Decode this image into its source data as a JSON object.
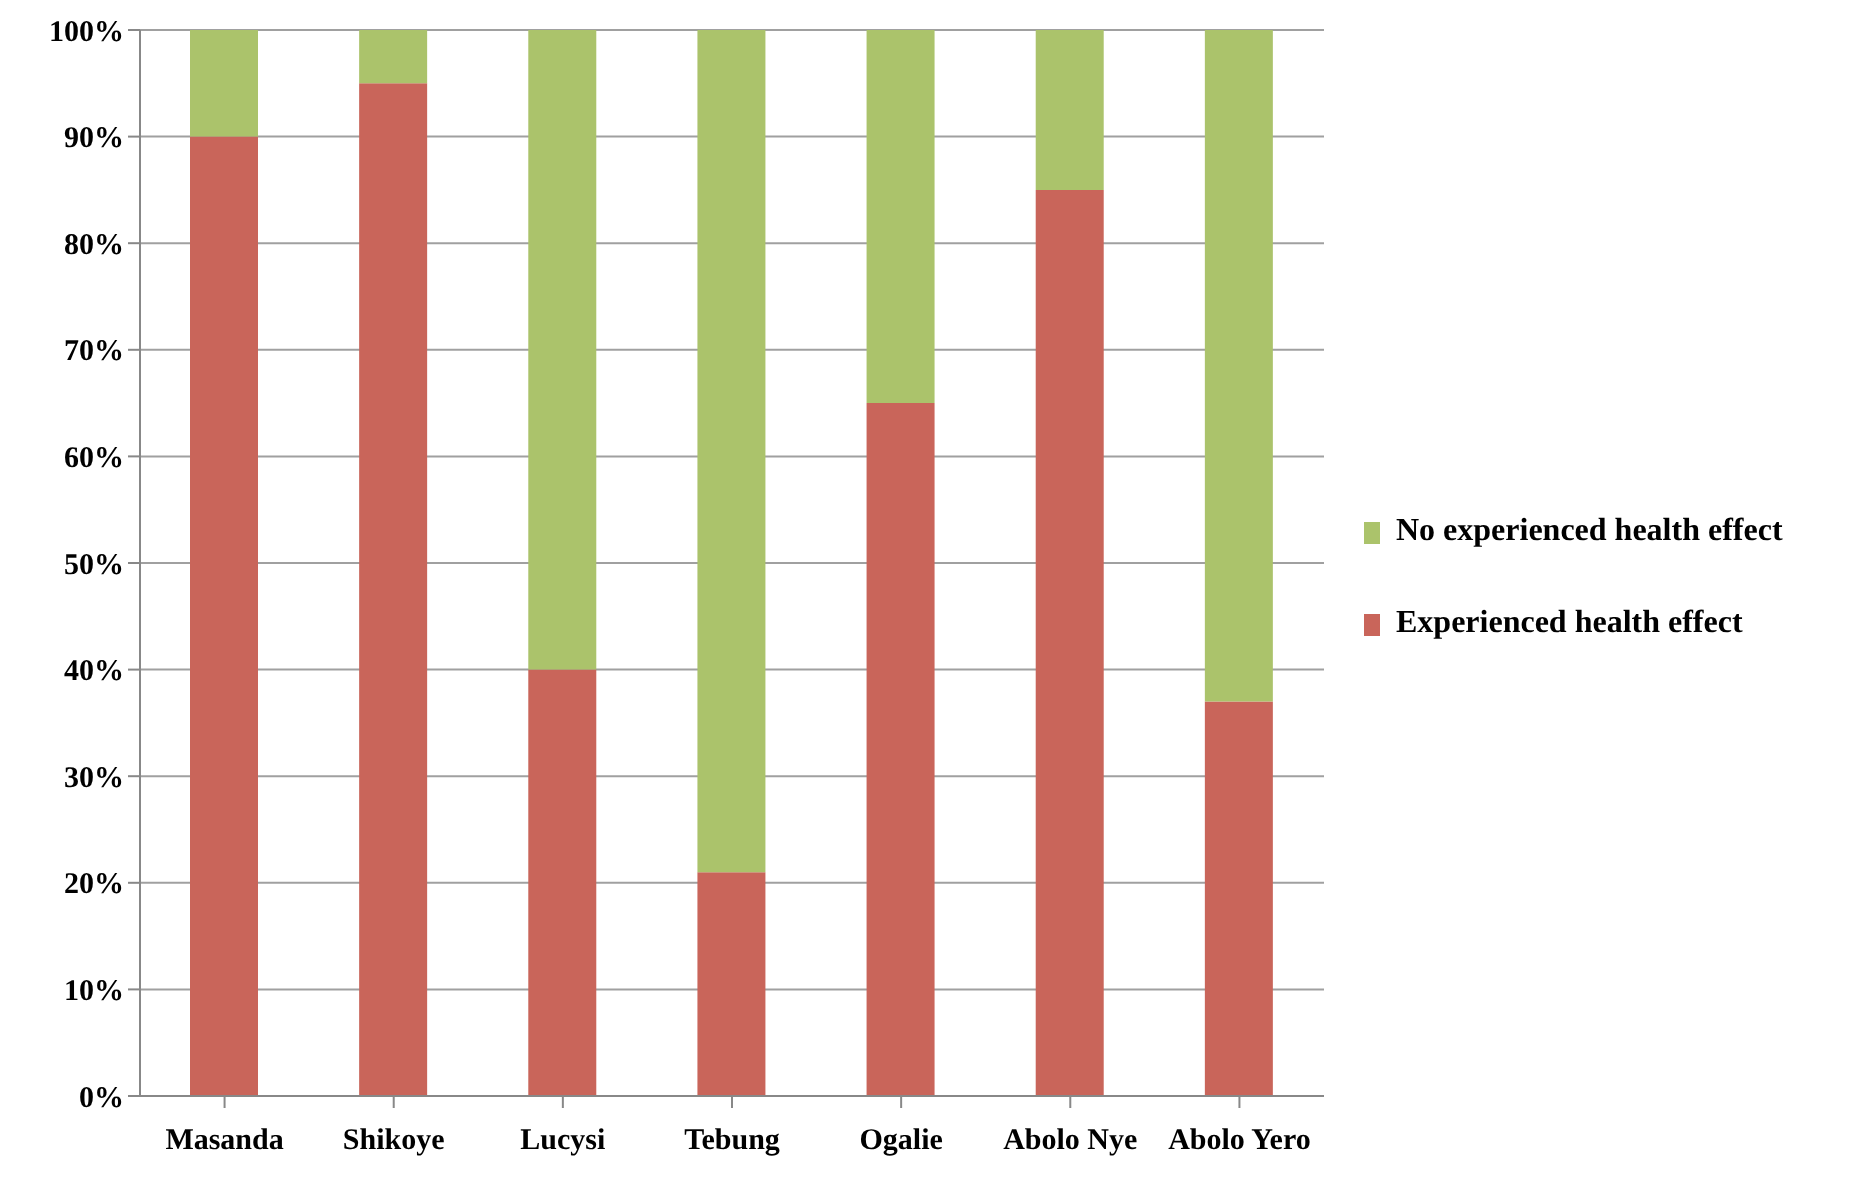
{
  "chart_data": {
    "type": "bar",
    "stacked": true,
    "categories": [
      "Masanda",
      "Shikoye",
      "Lucysi",
      "Tebung",
      "Ogalie",
      "Abolo Nye",
      "Abolo Yero"
    ],
    "series": [
      {
        "name": "Experienced health effect",
        "color": "#c9655a",
        "values": [
          90,
          95,
          40,
          21,
          65,
          85,
          37
        ]
      },
      {
        "name": "No experienced health effect",
        "color": "#abc36b",
        "values": [
          10,
          5,
          60,
          79,
          35,
          15,
          63
        ]
      }
    ],
    "ylim": [
      0,
      100
    ],
    "yticks": [
      {
        "value": 0,
        "label": "0%"
      },
      {
        "value": 10,
        "label": "10%"
      },
      {
        "value": 20,
        "label": "20%"
      },
      {
        "value": 30,
        "label": "30%"
      },
      {
        "value": 40,
        "label": "40%"
      },
      {
        "value": 50,
        "label": "50%"
      },
      {
        "value": 60,
        "label": "60%"
      },
      {
        "value": 70,
        "label": "70%"
      },
      {
        "value": 80,
        "label": "80%"
      },
      {
        "value": 90,
        "label": "90%"
      },
      {
        "value": 100,
        "label": "100%"
      }
    ],
    "grid": "y",
    "legend": "right"
  }
}
